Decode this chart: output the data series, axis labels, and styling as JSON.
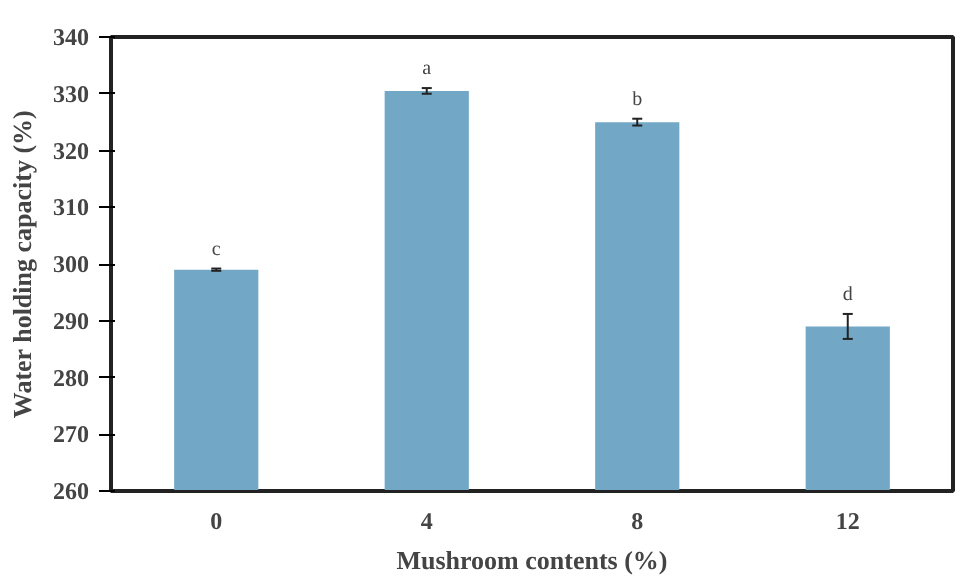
{
  "chart_data": {
    "type": "bar",
    "xlabel": "Mushroom contents (%)",
    "ylabel": "Water holding capacity (%)",
    "categories": [
      "0",
      "4",
      "8",
      "12"
    ],
    "values": [
      299,
      330.5,
      325,
      289
    ],
    "errors": [
      0.2,
      0.5,
      0.6,
      2.2
    ],
    "color": "#72a8c5",
    "ylim": [
      260,
      340
    ],
    "yticks": [
      260,
      270,
      280,
      290,
      300,
      310,
      320,
      330,
      340
    ],
    "grid": false,
    "annotations": [
      {
        "text": "c",
        "x": "0",
        "y": 299.2
      },
      {
        "text": "a",
        "x": "4",
        "y": 331
      },
      {
        "text": "b",
        "x": "8",
        "y": 325.6
      },
      {
        "text": "d",
        "x": "12",
        "y": 291.2
      }
    ]
  }
}
